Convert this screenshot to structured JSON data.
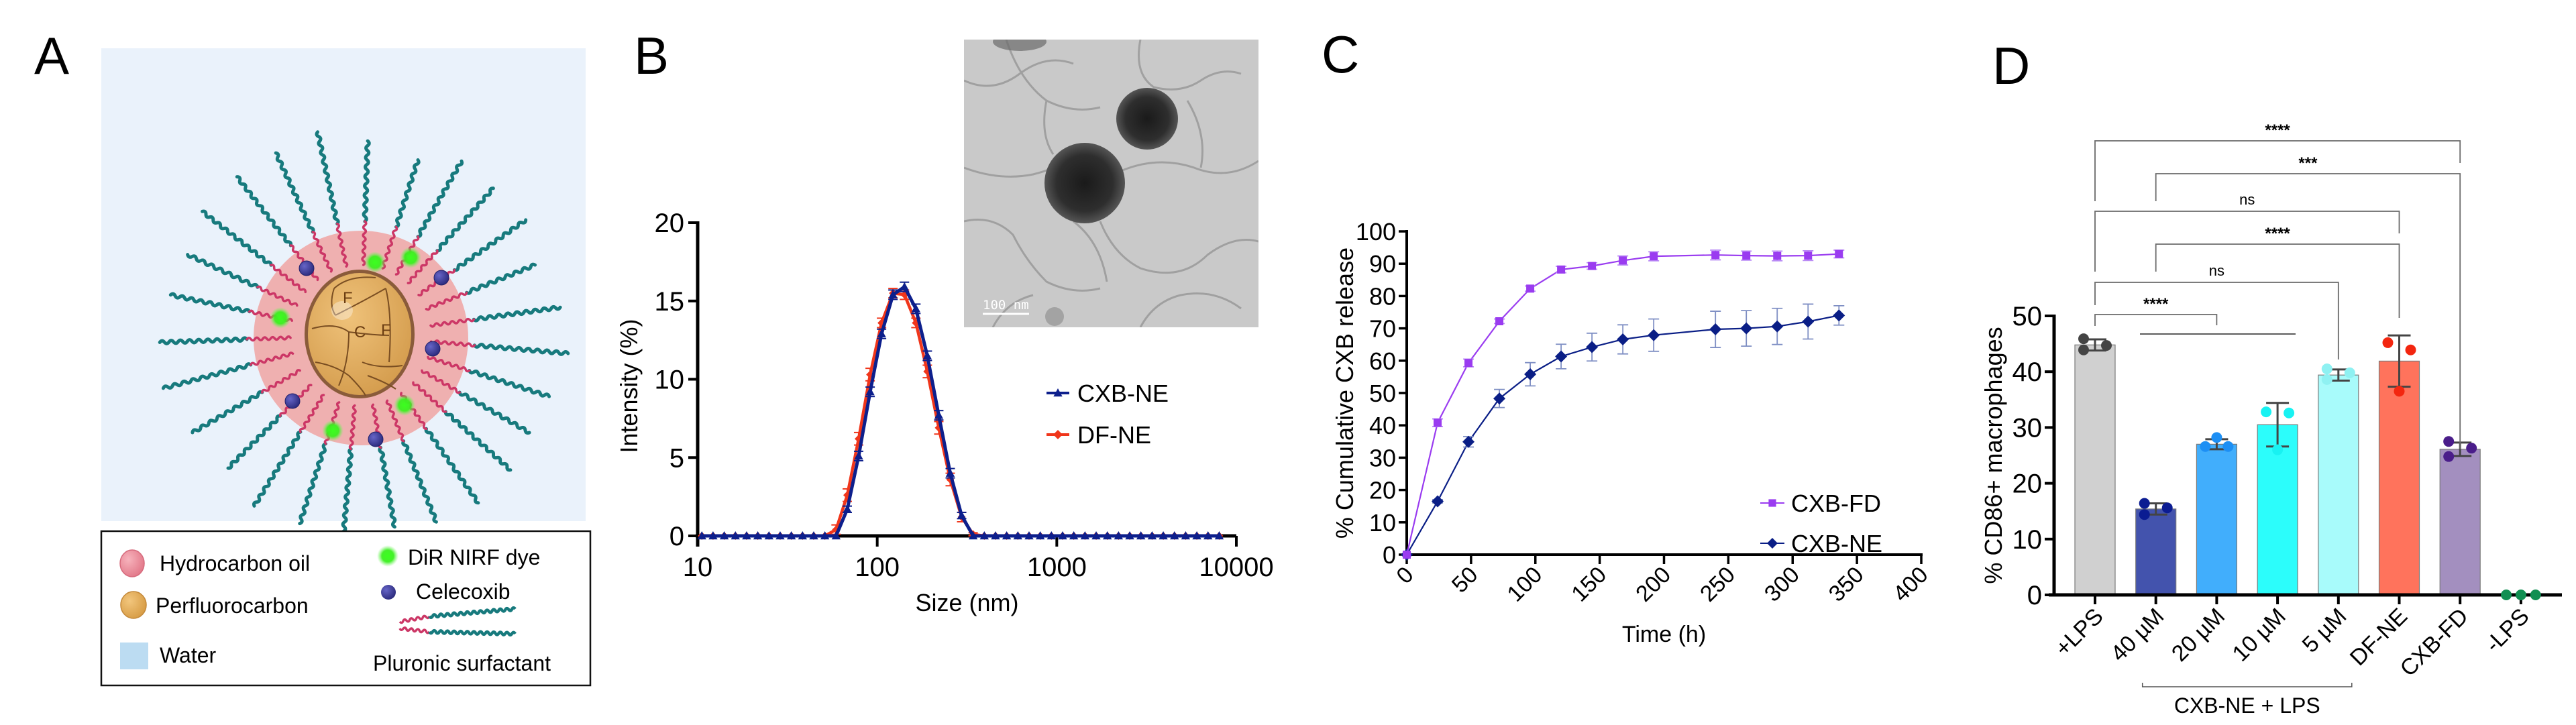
{
  "figure": {
    "panel_labels": [
      "A",
      "B",
      "C",
      "D"
    ]
  },
  "schematic": {
    "core_labels": [
      "F",
      "C",
      "F"
    ],
    "legend": [
      {
        "label": "Hydrocarbon oil",
        "icon": "pink-sphere-icon",
        "color": "#ec8f9c"
      },
      {
        "label": "Perfluorocarbon",
        "icon": "orange-sphere-icon",
        "color": "#e2ad5b"
      },
      {
        "label": "Water",
        "icon": "blue-square-icon",
        "color": "#bcdcf2"
      },
      {
        "label": "DiR NIRF dye",
        "icon": "green-glow-icon",
        "color": "#37e81f"
      },
      {
        "label": "Celecoxib",
        "icon": "purple-sphere-icon",
        "color": "#3c3b94"
      },
      {
        "label": "Pluronic surfactant",
        "icon": "surfactant-chain-icon",
        "color": "#d23f6b"
      }
    ],
    "colors": {
      "water": "#eaf2fb",
      "shell": "#efb0b0",
      "core": "#e1ac5c",
      "tail": "#177a7d",
      "head": "#cc3766"
    }
  },
  "tem_inset": {
    "scale_bar_label": "100 nm"
  },
  "chart_data": [
    {
      "id": "B",
      "type": "line",
      "title": "",
      "xlabel": "Size (nm)",
      "ylabel": "Intensity (%)",
      "xscale": "log",
      "xlim": [
        10,
        10000
      ],
      "ylim": [
        0,
        20
      ],
      "xticks": [
        10,
        100,
        1000,
        10000
      ],
      "xtick_labels": [
        "10",
        "100",
        "1000",
        "10000"
      ],
      "yticks": [
        0,
        5,
        10,
        15,
        20
      ],
      "ytick_labels": [
        "0",
        "5",
        "10",
        "15",
        "20"
      ],
      "grid": false,
      "legend_position": "center-right",
      "baseline_range_nm": [
        10,
        8900
      ],
      "series": [
        {
          "name": "CXB-NE",
          "color": "#0d1f8c",
          "marker": "triangle",
          "x": [
            59,
            68.1,
            78.8,
            91.3,
            105.7,
            122.4,
            141.8,
            164.2,
            190.1,
            220.2,
            255.0,
            295.3,
            342.0
          ],
          "y": [
            0,
            1.7,
            5.1,
            9.2,
            12.9,
            15.4,
            15.9,
            14.5,
            11.5,
            7.7,
            4.0,
            1.3,
            0
          ],
          "err": [
            0,
            0.2,
            0.3,
            0.3,
            0.3,
            0.3,
            0.3,
            0.3,
            0.3,
            0.3,
            0.3,
            0.2,
            0
          ]
        },
        {
          "name": "DF-NE",
          "color": "#f0361b",
          "marker": "diamond",
          "x": [
            59,
            68.1,
            78.8,
            91.3,
            105.7,
            122.4,
            141.8,
            164.2,
            190.1,
            220.2,
            255.0,
            295.3,
            342.0
          ],
          "y": [
            0.4,
            2.6,
            6.2,
            10.3,
            13.6,
            15.5,
            15.4,
            13.6,
            10.5,
            6.9,
            3.6,
            1.2,
            0.1
          ],
          "err": [
            0.3,
            0.4,
            0.4,
            0.4,
            0.3,
            0.3,
            0.3,
            0.3,
            0.4,
            0.4,
            0.4,
            0.3,
            0.1
          ]
        }
      ]
    },
    {
      "id": "C",
      "type": "line",
      "title": "",
      "xlabel": "Time (h)",
      "ylabel": "% Cumulative CXB release",
      "xlim": [
        0,
        400
      ],
      "ylim": [
        0,
        100
      ],
      "xticks": [
        0,
        50,
        100,
        150,
        200,
        250,
        300,
        350,
        400
      ],
      "xtick_labels": [
        "0",
        "50",
        "100",
        "150",
        "200",
        "250",
        "300",
        "350",
        "400"
      ],
      "yticks": [
        0,
        10,
        20,
        30,
        40,
        50,
        60,
        70,
        80,
        90,
        100
      ],
      "ytick_labels": [
        "0",
        "10",
        "20",
        "30",
        "40",
        "50",
        "60",
        "70",
        "80",
        "90",
        "100"
      ],
      "grid": false,
      "legend_position": "bottom-right",
      "x": [
        0,
        24,
        48,
        72,
        96,
        120,
        144,
        168,
        192,
        240,
        264,
        288,
        312,
        336
      ],
      "series": [
        {
          "name": "CXB-FD",
          "color": "#9a3cf0",
          "marker": "square",
          "y": [
            0,
            40.8,
            59.3,
            72.2,
            82.3,
            88.2,
            89.3,
            91.0,
            92.3,
            92.7,
            92.5,
            92.4,
            92.5,
            93.0
          ],
          "err": [
            0,
            1.2,
            1.2,
            0.7,
            0.8,
            1.0,
            1.0,
            1.4,
            1.4,
            1.5,
            1.4,
            1.5,
            1.5,
            1.2
          ]
        },
        {
          "name": "CXB-NE",
          "color": "#0a1e86",
          "marker": "diamond",
          "y": [
            0,
            16.5,
            34.9,
            48.3,
            55.8,
            61.3,
            64.2,
            66.6,
            67.9,
            69.7,
            70.0,
            70.6,
            72.1,
            74.0
          ],
          "err": [
            0,
            0.5,
            1.6,
            2.8,
            3.6,
            3.8,
            4.3,
            4.5,
            5.0,
            5.6,
            5.5,
            5.6,
            5.4,
            3.0
          ]
        }
      ]
    },
    {
      "id": "D",
      "type": "bar",
      "title": "",
      "xlabel": "",
      "ylabel": "% CD86+ macrophages",
      "ylim": [
        0,
        50
      ],
      "yticks": [
        0,
        10,
        20,
        30,
        40,
        50
      ],
      "ytick_labels": [
        "0",
        "10",
        "20",
        "30",
        "40",
        "50"
      ],
      "grid": false,
      "categories": [
        "+LPS",
        "40 µM",
        "20 µM",
        "10 µM",
        "5 µM",
        "DF-NE",
        "CXB-FD",
        "-LPS"
      ],
      "values": [
        44.8,
        15.4,
        27.0,
        30.5,
        39.4,
        41.9,
        26.1,
        0
      ],
      "sd": [
        1.0,
        1.0,
        0.9,
        3.9,
        1.0,
        4.6,
        1.2,
        0
      ],
      "replicates": [
        [
          45.9,
          43.9,
          44.7
        ],
        [
          16.4,
          14.4,
          15.6
        ],
        [
          28.2,
          26.6,
          26.6
        ],
        [
          32.8,
          32.6,
          26.0
        ],
        [
          40.5,
          38.6,
          39.8
        ],
        [
          45.2,
          43.9,
          36.5
        ],
        [
          27.5,
          24.8,
          26.3
        ],
        [
          0,
          0,
          0
        ]
      ],
      "bar_colors": [
        "#d0d0d0",
        "#4353ad",
        "#41aefc",
        "#2cfdfb",
        "#a8fbfb",
        "#ff735c",
        "#a38fbf",
        "#ffffff"
      ],
      "dot_colors": [
        "#444444",
        "#0b1c92",
        "#1d8ff4",
        "#18f2f2",
        "#8ff1f2",
        "#f3260f",
        "#4a1d8a",
        "#118f52"
      ],
      "group_label": "CXB-NE + LPS",
      "group_span": [
        "40 µM",
        "5 µM"
      ],
      "significance": [
        {
          "from": "+LPS",
          "to": "CXB-FD",
          "label": "****"
        },
        {
          "from": "40 µM",
          "to": "CXB-FD",
          "label": "***"
        },
        {
          "from": "+LPS",
          "to": "DF-NE",
          "label": "ns"
        },
        {
          "from": "40 µM",
          "to": "DF-NE",
          "label": "****"
        },
        {
          "from": "+LPS",
          "to": "5 µM",
          "label": "ns"
        },
        {
          "from": "+LPS",
          "to": "20 µM",
          "label": "****"
        }
      ]
    }
  ]
}
